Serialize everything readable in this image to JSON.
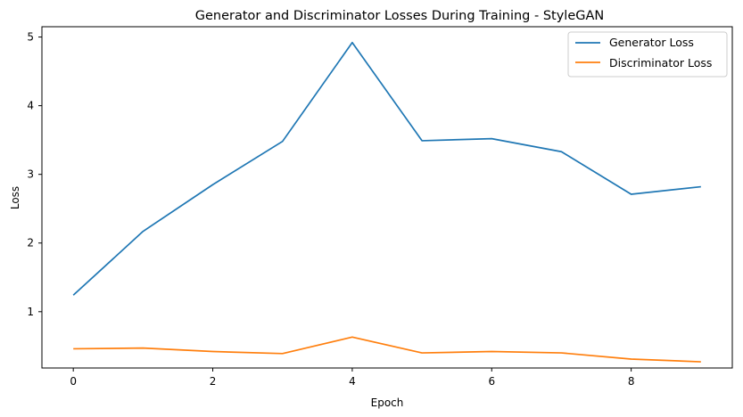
{
  "chart_data": {
    "type": "line",
    "title": "Generator and Discriminator Losses During Training - StyleGAN",
    "xlabel": "Epoch",
    "ylabel": "Loss",
    "x": [
      0,
      1,
      2,
      3,
      4,
      5,
      6,
      7,
      8,
      9
    ],
    "xlim": [
      -0.45,
      9.45
    ],
    "ylim": [
      0.18,
      5.15
    ],
    "xticks": [
      0,
      2,
      4,
      6,
      8
    ],
    "yticks": [
      1,
      2,
      3,
      4,
      5
    ],
    "grid": false,
    "legend_position": "top-right",
    "series": [
      {
        "name": "Generator Loss",
        "color": "#1f77b4",
        "values": [
          1.24,
          2.17,
          2.85,
          3.48,
          4.92,
          3.49,
          3.52,
          3.33,
          2.71,
          2.82
        ]
      },
      {
        "name": "Discriminator Loss",
        "color": "#ff7f0e",
        "values": [
          0.46,
          0.47,
          0.42,
          0.39,
          0.63,
          0.4,
          0.42,
          0.4,
          0.31,
          0.27
        ]
      }
    ]
  }
}
